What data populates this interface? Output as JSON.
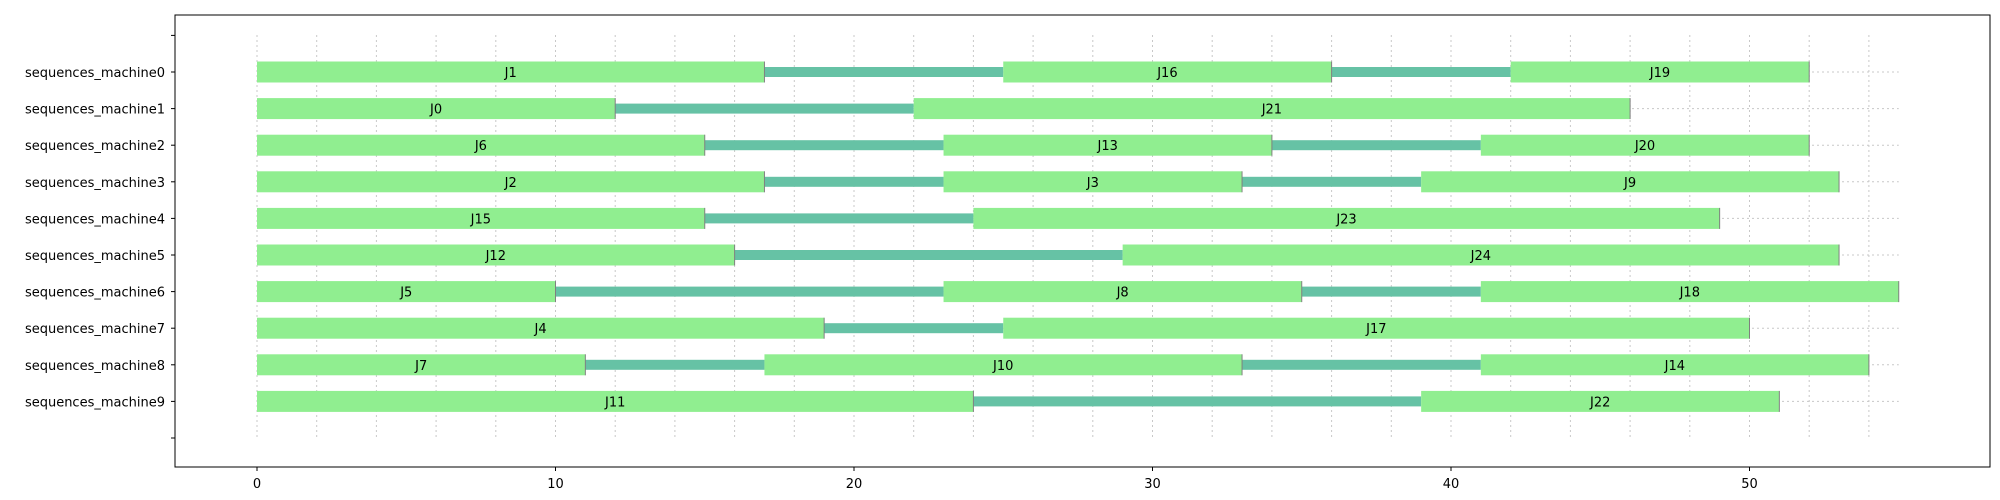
{
  "chart_data": {
    "type": "gantt",
    "title": "",
    "xlabel": "",
    "ylabel": "",
    "xlim": [
      -2.8,
      57.5
    ],
    "xticks": [
      0,
      10,
      20,
      30,
      40,
      50
    ],
    "minor_grid_step": 2,
    "grid": true,
    "colors": {
      "task": "#90EE90",
      "gap": "#66C2A5",
      "edge": "#808080"
    },
    "rows": [
      {
        "label": "sequences_machine0",
        "tasks": [
          {
            "name": "J1",
            "start": 0,
            "end": 17
          },
          {
            "name": "J16",
            "start": 25,
            "end": 36
          },
          {
            "name": "J19",
            "start": 42,
            "end": 52
          }
        ]
      },
      {
        "label": "sequences_machine1",
        "tasks": [
          {
            "name": "J0",
            "start": 0,
            "end": 12
          },
          {
            "name": "J21",
            "start": 22,
            "end": 46
          }
        ]
      },
      {
        "label": "sequences_machine2",
        "tasks": [
          {
            "name": "J6",
            "start": 0,
            "end": 15
          },
          {
            "name": "J13",
            "start": 23,
            "end": 34
          },
          {
            "name": "J20",
            "start": 41,
            "end": 52
          }
        ]
      },
      {
        "label": "sequences_machine3",
        "tasks": [
          {
            "name": "J2",
            "start": 0,
            "end": 17
          },
          {
            "name": "J3",
            "start": 23,
            "end": 33
          },
          {
            "name": "J9",
            "start": 39,
            "end": 53
          }
        ]
      },
      {
        "label": "sequences_machine4",
        "tasks": [
          {
            "name": "J15",
            "start": 0,
            "end": 15
          },
          {
            "name": "J23",
            "start": 24,
            "end": 49
          }
        ]
      },
      {
        "label": "sequences_machine5",
        "tasks": [
          {
            "name": "J12",
            "start": 0,
            "end": 16
          },
          {
            "name": "J24",
            "start": 29,
            "end": 53
          }
        ]
      },
      {
        "label": "sequences_machine6",
        "tasks": [
          {
            "name": "J5",
            "start": 0,
            "end": 10
          },
          {
            "name": "J8",
            "start": 23,
            "end": 35
          },
          {
            "name": "J18",
            "start": 41,
            "end": 55
          }
        ]
      },
      {
        "label": "sequences_machine7",
        "tasks": [
          {
            "name": "J4",
            "start": 0,
            "end": 19
          },
          {
            "name": "J17",
            "start": 25,
            "end": 50
          }
        ]
      },
      {
        "label": "sequences_machine8",
        "tasks": [
          {
            "name": "J7",
            "start": 0,
            "end": 11
          },
          {
            "name": "J10",
            "start": 17,
            "end": 33
          },
          {
            "name": "J14",
            "start": 41,
            "end": 54
          }
        ]
      },
      {
        "label": "sequences_machine9",
        "tasks": [
          {
            "name": "J11",
            "start": 0,
            "end": 24
          },
          {
            "name": "J22",
            "start": 39,
            "end": 51
          }
        ]
      }
    ]
  }
}
